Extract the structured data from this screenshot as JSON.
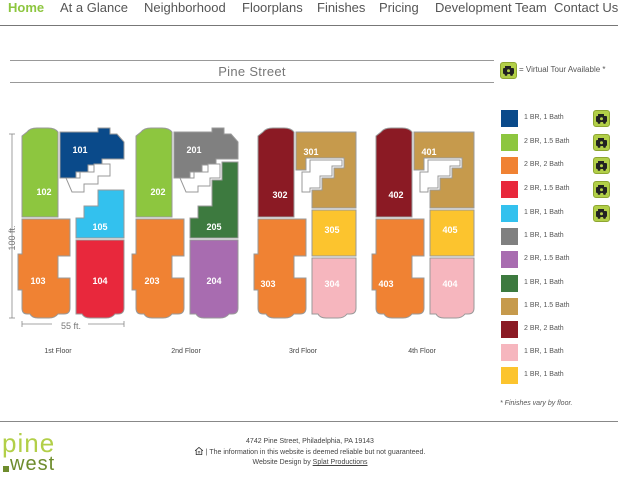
{
  "nav": {
    "items": [
      {
        "label": "Home",
        "active": true
      },
      {
        "label": "At a Glance",
        "active": false
      },
      {
        "label": "Neighborhood",
        "active": false
      },
      {
        "label": "Floorplans",
        "active": false
      },
      {
        "label": "Finishes",
        "active": false
      },
      {
        "label": "Pricing",
        "active": false
      },
      {
        "label": "Development Team",
        "active": false
      },
      {
        "label": "Contact Us",
        "active": false
      }
    ]
  },
  "page_title": "Pine Street",
  "virtual_tour_note": "= Virtual Tour Available *",
  "dimensions": {
    "depth": "100 ft.",
    "width": "55 ft."
  },
  "floors": [
    {
      "label": "1st Floor",
      "units": [
        "101",
        "102",
        "103",
        "104",
        "105"
      ]
    },
    {
      "label": "2nd Floor",
      "units": [
        "201",
        "202",
        "203",
        "204",
        "205"
      ]
    },
    {
      "label": "3rd Floor",
      "units": [
        "301",
        "302",
        "303",
        "304",
        "305"
      ]
    },
    {
      "label": "4th Floor",
      "units": [
        "401",
        "402",
        "403",
        "404",
        "405"
      ]
    }
  ],
  "legend": [
    {
      "label": "1 BR, 1 Bath",
      "color": "#0a4a8a",
      "tour": true
    },
    {
      "label": "2 BR, 1.5 Bath",
      "color": "#8dc63f",
      "tour": true
    },
    {
      "label": "2 BR, 2 Bath",
      "color": "#f08233",
      "tour": true
    },
    {
      "label": "2 BR, 1.5 Bath",
      "color": "#e8283c",
      "tour": true
    },
    {
      "label": "1 BR, 1 Bath",
      "color": "#33c1ee",
      "tour": true
    },
    {
      "label": "1 BR, 1 Bath",
      "color": "#808080",
      "tour": false
    },
    {
      "label": "2 BR, 1.5 Bath",
      "color": "#a86cb0",
      "tour": false
    },
    {
      "label": "1 BR, 1 Bath",
      "color": "#3d7a3f",
      "tour": false
    },
    {
      "label": "1 BR, 1.5 Bath",
      "color": "#c69a4c",
      "tour": false
    },
    {
      "label": "2 BR, 2 Bath",
      "color": "#8b1a24",
      "tour": false
    },
    {
      "label": "1 BR, 1 Bath",
      "color": "#f6b6be",
      "tour": false
    },
    {
      "label": "1 BR, 1 Bath",
      "color": "#fcc42e",
      "tour": false
    }
  ],
  "finish_note": "* Finishes vary by floor.",
  "logo": {
    "line1": "pine",
    "line2": "west"
  },
  "footer": {
    "address": "4742 Pine Street, Philadelphia, PA 19143",
    "disclaimer": "| The information in this website is deemed reliable but not guaranteed.",
    "credit_prefix": "Website Design by",
    "credit_link": "Splat Productions"
  },
  "icons": {
    "tour": "camera-car-icon",
    "house": "equal-housing-icon"
  }
}
